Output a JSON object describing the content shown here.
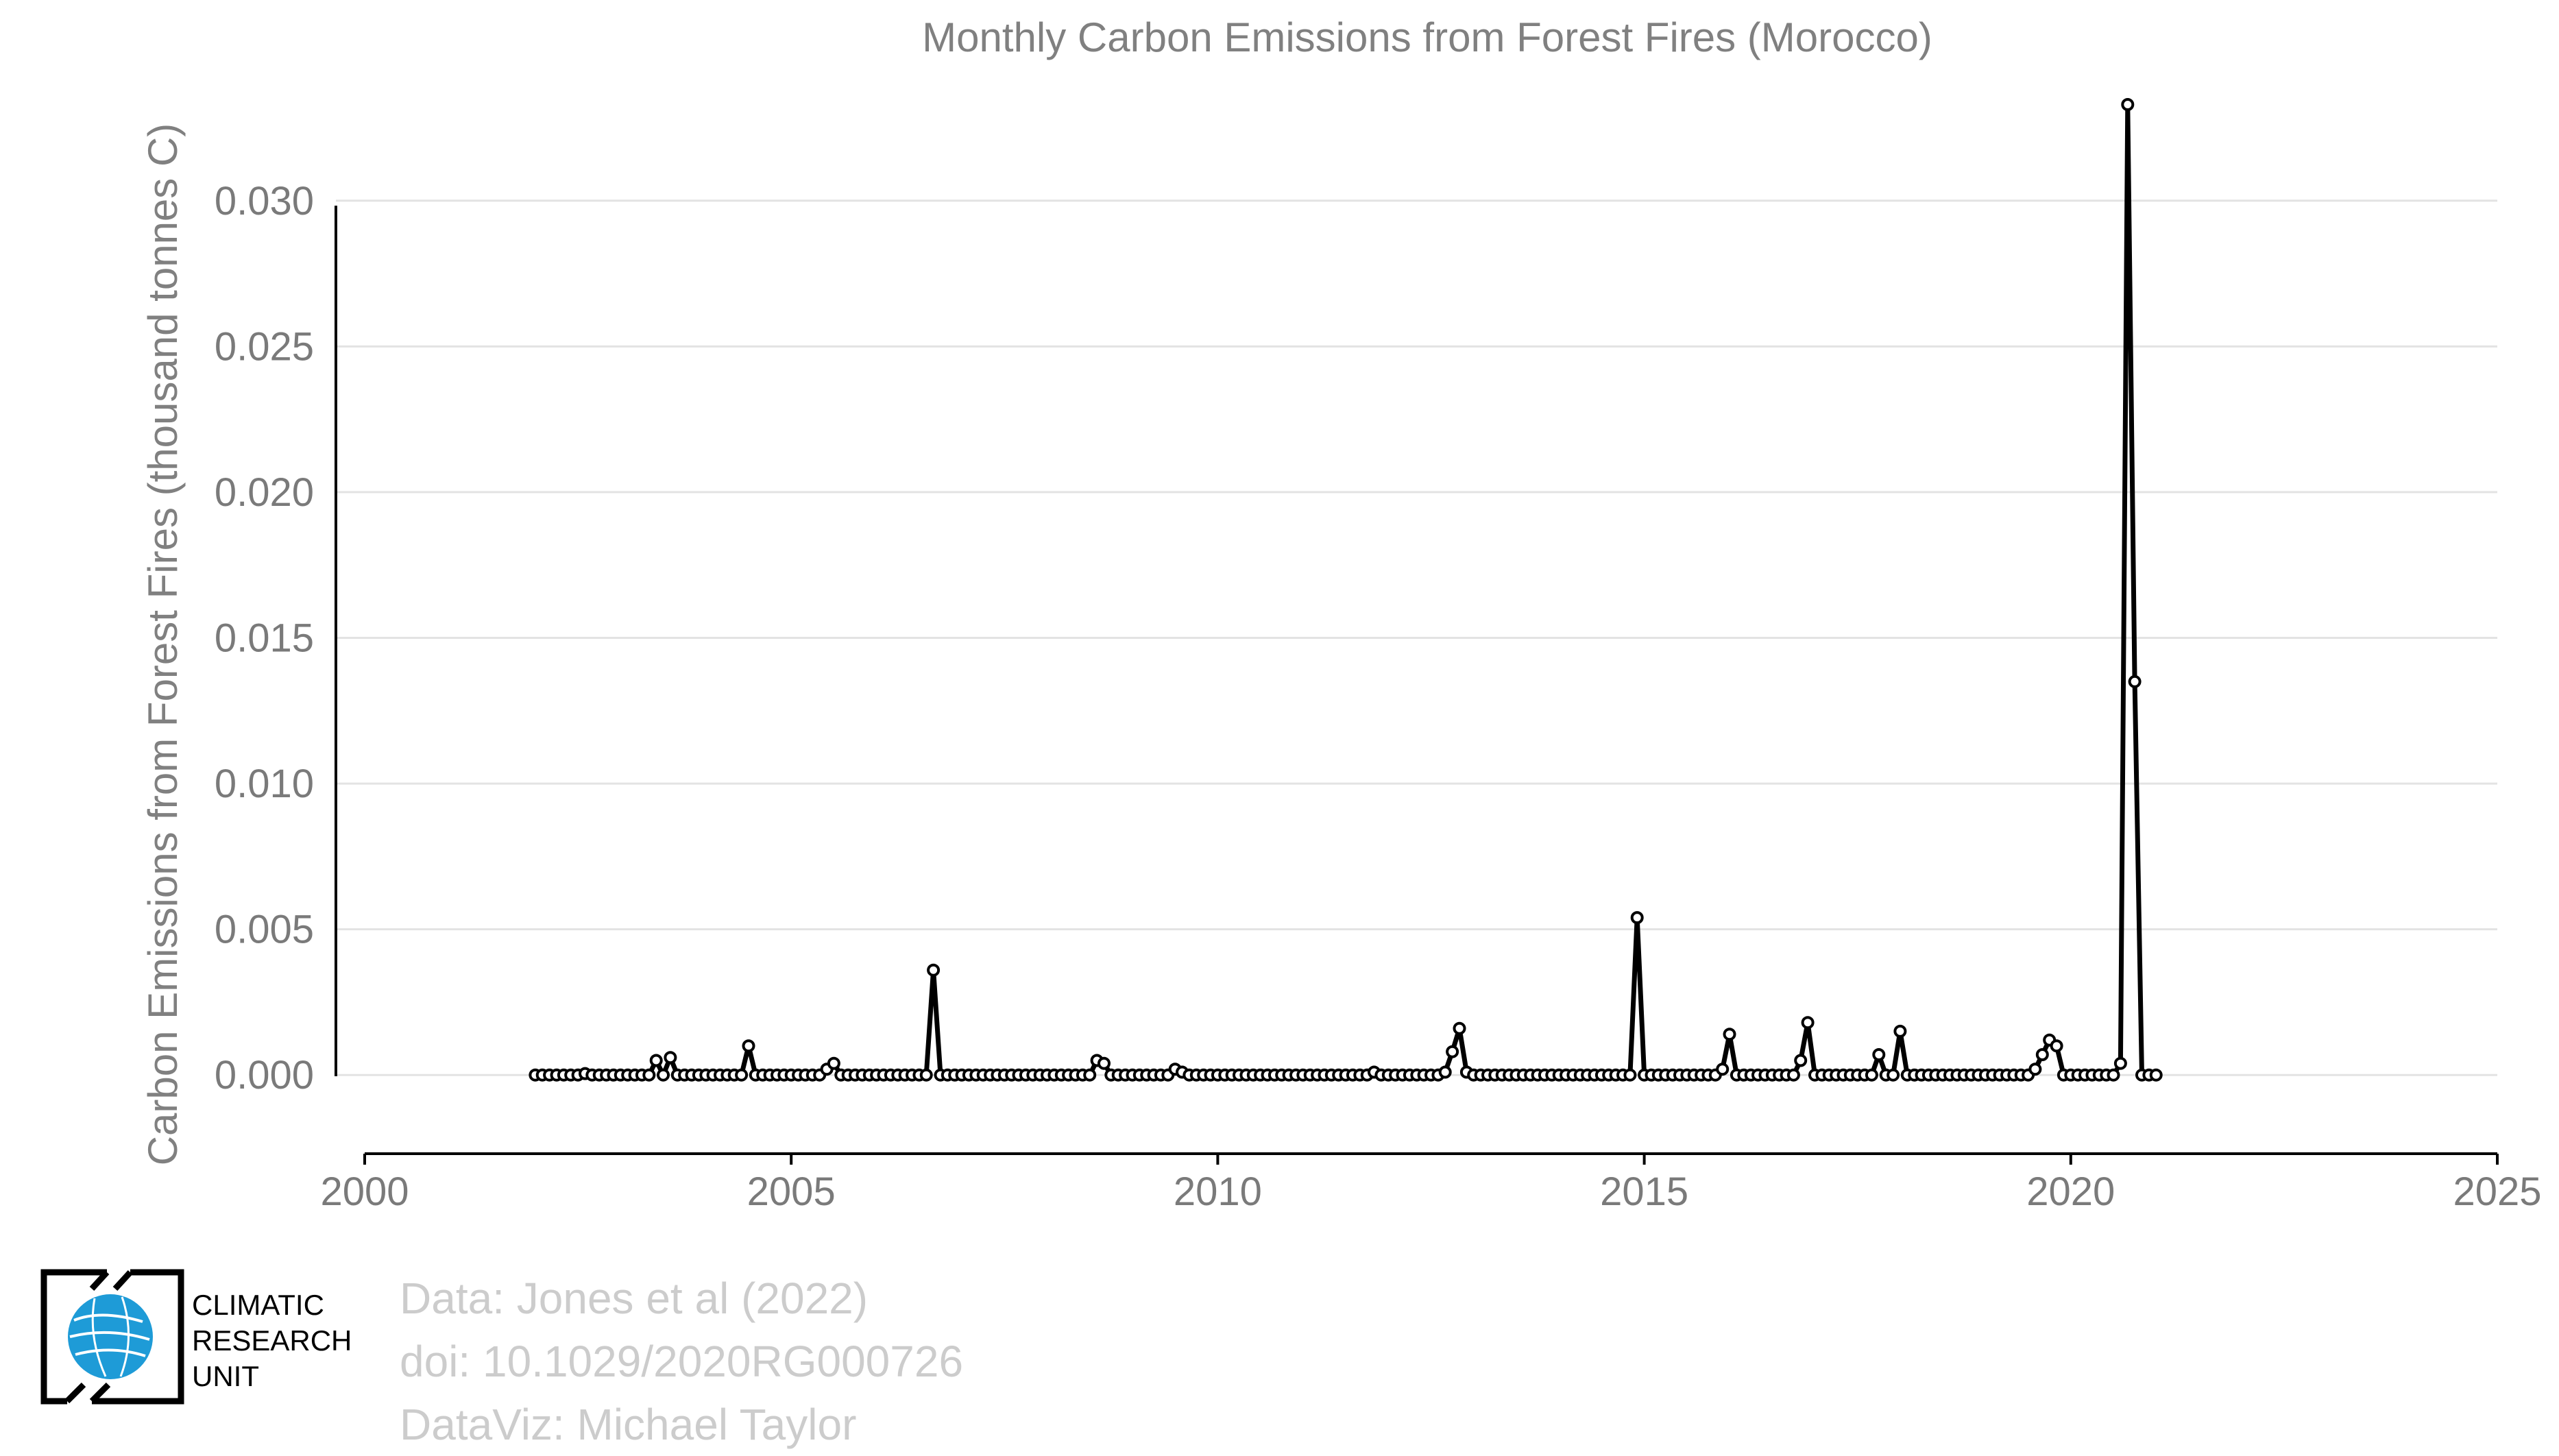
{
  "chart_data": {
    "type": "line",
    "title": "Monthly Carbon Emissions from Forest Fires (Morocco)",
    "xlabel": "",
    "ylabel": "Carbon Emissions from Forest Fires (thousand tonnes C)",
    "xlim": [
      2000,
      2025
    ],
    "ylim": [
      -0.0027,
      0.0335
    ],
    "x_ticks": [
      "2000",
      "2005",
      "2010",
      "2015",
      "2020",
      "2025"
    ],
    "y_ticks": [
      "0.000",
      "0.005",
      "0.010",
      "0.015",
      "0.020",
      "0.025",
      "0.030"
    ],
    "grid": "horizontal",
    "legend": "none",
    "series": [
      {
        "start_year": 2002,
        "values": [
          0,
          0,
          0,
          0,
          0,
          0,
          0,
          5e-05,
          0,
          0,
          0,
          0,
          0,
          0,
          0,
          0,
          0,
          0.0005,
          0,
          0.0006,
          0,
          0,
          0,
          0,
          0,
          0,
          0,
          0,
          0,
          0,
          0.001,
          0,
          0,
          0,
          0,
          0,
          0,
          0,
          0,
          0,
          0,
          0.0002,
          0.0004,
          0,
          0,
          0,
          0,
          0,
          0,
          0,
          0,
          0,
          0,
          0,
          0,
          0,
          0.0036,
          0,
          0,
          0,
          0,
          0,
          0,
          0,
          0,
          0,
          0,
          0,
          0,
          0,
          0,
          0,
          0,
          0,
          0,
          0,
          0,
          0,
          0,
          0.0005,
          0.0004,
          0,
          0,
          0,
          0,
          0,
          0,
          0,
          0,
          0,
          0.0002,
          0.0001,
          0,
          0,
          0,
          0,
          0,
          0,
          0,
          0,
          0,
          0,
          0,
          0,
          0,
          0,
          0,
          0,
          0,
          0,
          0,
          0,
          0,
          0,
          0,
          0,
          0,
          0,
          0.0001,
          0,
          0,
          0,
          0,
          0,
          0,
          0,
          0,
          0,
          0.0001,
          0.0008,
          0.0016,
          0.0001,
          0,
          0,
          0,
          0,
          0,
          0,
          0,
          0,
          0,
          0,
          0,
          0,
          0,
          0,
          0,
          0,
          0,
          0,
          0,
          0,
          0,
          0,
          0,
          0.0054,
          0,
          0,
          0,
          0,
          0,
          0,
          0,
          0,
          0,
          0,
          0,
          0.0002,
          0.0014,
          0,
          0,
          0,
          0,
          0,
          0,
          0,
          0,
          0,
          0.0005,
          0.0018,
          0,
          0,
          0,
          0,
          0,
          0,
          0,
          0,
          0,
          0.0007,
          0,
          0,
          0.0015,
          0,
          0,
          0,
          0,
          0,
          0,
          0,
          0,
          0,
          0,
          0,
          0,
          0,
          0,
          0,
          0,
          0,
          0,
          0.0002,
          0.0007,
          0.0012,
          0.001,
          0,
          0,
          0,
          0,
          0,
          0,
          0,
          0,
          0.0004,
          0.0333,
          0.0135,
          0,
          0,
          0
        ]
      }
    ]
  },
  "credits": {
    "line1": "Data: Jones et al (2022)",
    "line2": "doi: 10.1029/2020RG000726",
    "line3": "DataViz: Michael Taylor"
  },
  "logo": {
    "line1": "CLIMATIC",
    "line2": "RESEARCH",
    "line3": "UNIT",
    "globe_color": "#1e9bd7"
  }
}
